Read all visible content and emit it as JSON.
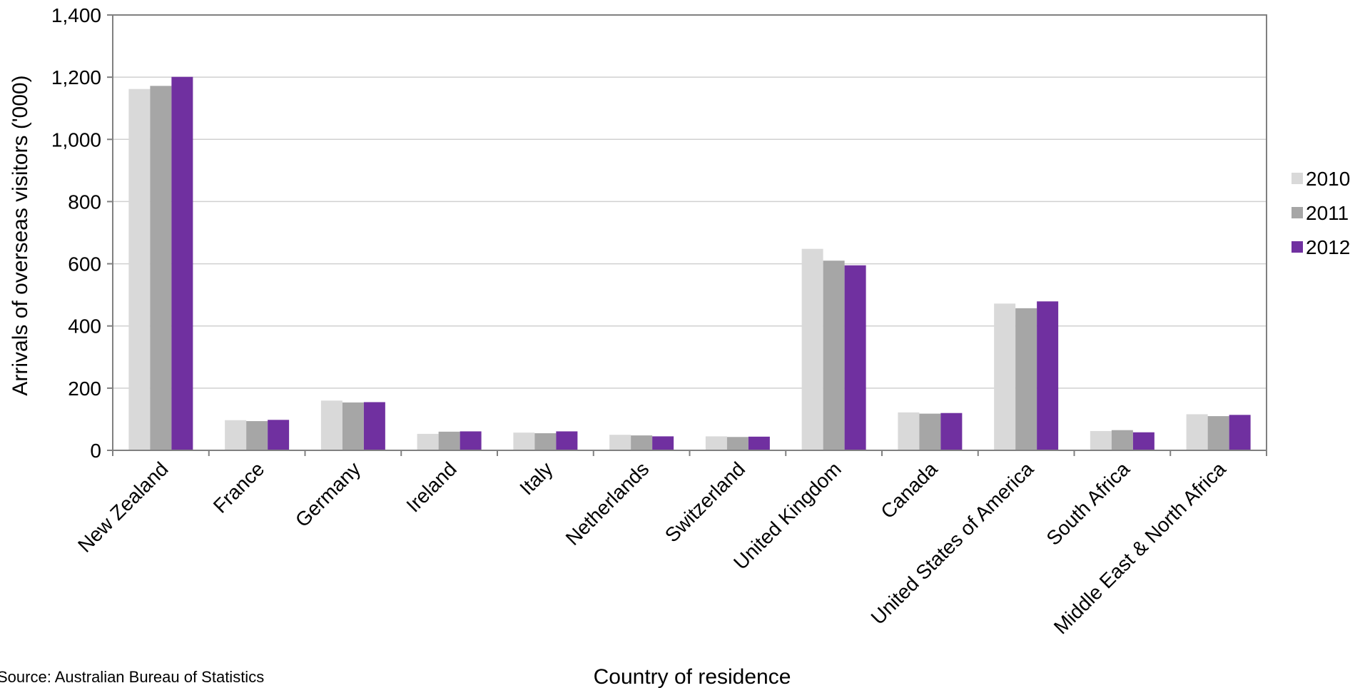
{
  "chart_data": {
    "type": "bar",
    "title": "",
    "xlabel": "Country of residence",
    "ylabel": "Arrivals of overseas visitors ('000)",
    "ylim": [
      0,
      1400
    ],
    "yticks": [
      0,
      200,
      400,
      600,
      800,
      1000,
      1200,
      1400
    ],
    "ytick_labels": [
      "0",
      "200",
      "400",
      "600",
      "800",
      "1,000",
      "1,200",
      "1,400"
    ],
    "grid": true,
    "legend_position": "right",
    "categories": [
      "New Zealand",
      "France",
      "Germany",
      "Ireland",
      "Italy",
      "Netherlands",
      "Switzerland",
      "United Kingdom",
      "Canada",
      "United States of America",
      "South Africa",
      "Middle East & North Africa"
    ],
    "series": [
      {
        "name": "2010",
        "color": "#d9d9d9",
        "values": [
          1162,
          97,
          160,
          53,
          57,
          50,
          45,
          648,
          122,
          472,
          62,
          116
        ]
      },
      {
        "name": "2011",
        "color": "#a6a6a6",
        "values": [
          1172,
          94,
          154,
          60,
          55,
          48,
          43,
          610,
          118,
          457,
          65,
          110
        ]
      },
      {
        "name": "2012",
        "color": "#7030a0",
        "values": [
          1201,
          98,
          155,
          61,
          61,
          45,
          44,
          595,
          120,
          479,
          58,
          114
        ]
      }
    ],
    "source": "Source: Australian Bureau of Statistics"
  }
}
